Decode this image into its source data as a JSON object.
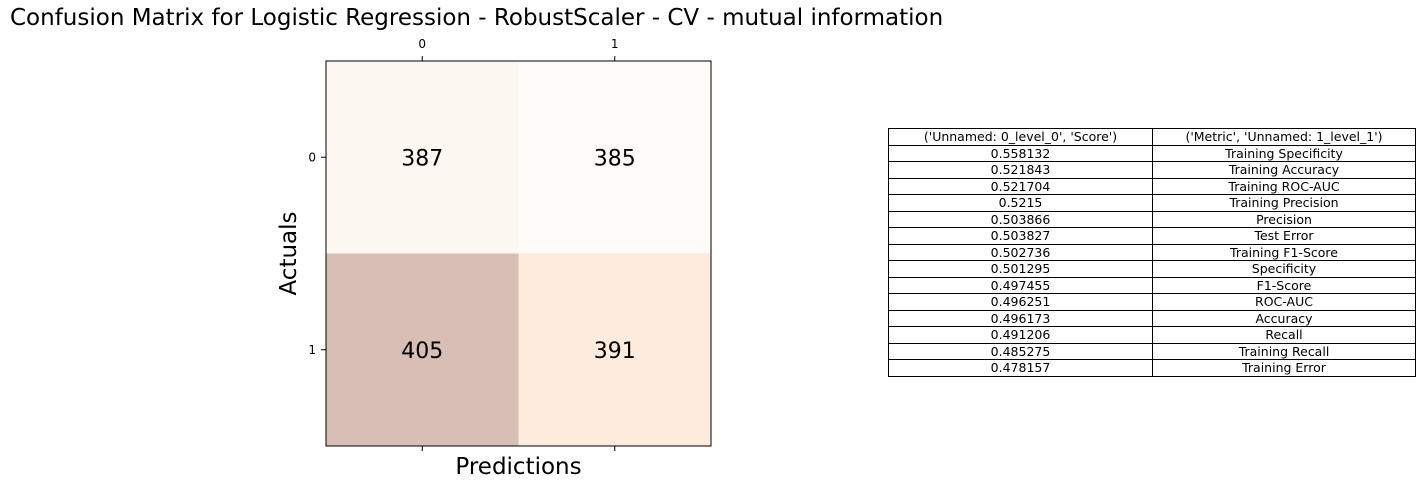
{
  "chart_data": {
    "type": "heatmap",
    "title": "Confusion Matrix for Logistic Regression - RobustScaler - CV - mutual information",
    "xlabel": "Predictions",
    "ylabel": "Actuals",
    "x_ticks": [
      "0",
      "1"
    ],
    "y_ticks": [
      "0",
      "1"
    ],
    "matrix": [
      [
        387,
        385
      ],
      [
        405,
        391
      ]
    ],
    "cell_colors": [
      [
        "#fdf7f1",
        "#fffbf8"
      ],
      [
        "#d9beb5",
        "#fdecdc"
      ]
    ]
  },
  "table": {
    "headers": [
      "('Unnamed: 0_level_0', 'Score')",
      "('Metric', 'Unnamed: 1_level_1')"
    ],
    "rows": [
      [
        "0.558132",
        "Training Specificity"
      ],
      [
        "0.521843",
        "Training Accuracy"
      ],
      [
        "0.521704",
        "Training ROC-AUC"
      ],
      [
        "0.5215",
        "Training Precision"
      ],
      [
        "0.503866",
        "Precision"
      ],
      [
        "0.503827",
        "Test Error"
      ],
      [
        "0.502736",
        "Training F1-Score"
      ],
      [
        "0.501295",
        "Specificity"
      ],
      [
        "0.497455",
        "F1-Score"
      ],
      [
        "0.496251",
        "ROC-AUC"
      ],
      [
        "0.496173",
        "Accuracy"
      ],
      [
        "0.491206",
        "Recall"
      ],
      [
        "0.485275",
        "Training Recall"
      ],
      [
        "0.478157",
        "Training Error"
      ]
    ]
  }
}
